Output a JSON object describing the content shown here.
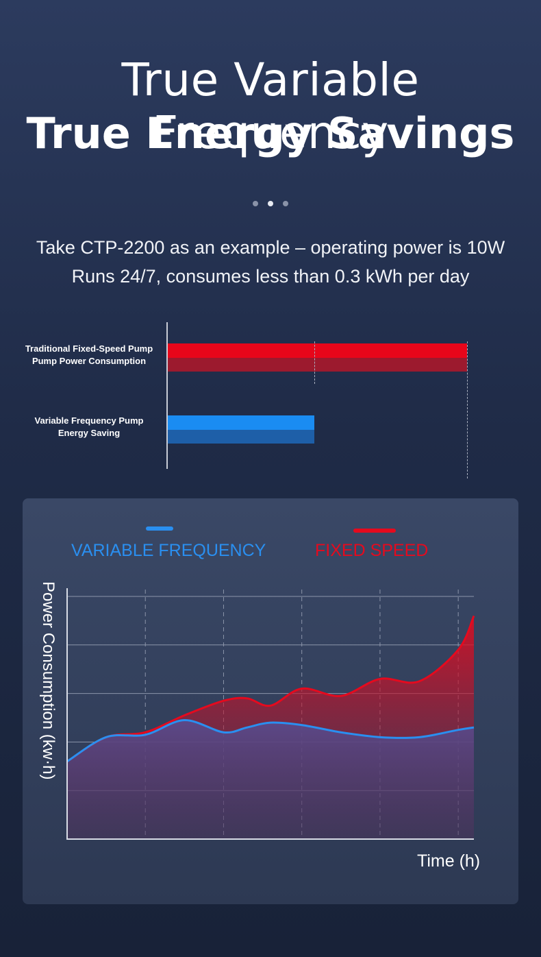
{
  "header": {
    "title_line1": "True Variable Frequency",
    "title_line2": "True Energy Savings",
    "carousel": {
      "count": 3,
      "active_index": 1
    }
  },
  "intro": {
    "line1": "Take CTP-2200 as an example – operating power is 10W",
    "line2": "Runs 24/7, consumes less than 0.3 kWh per day"
  },
  "colors": {
    "fixed_bar_top": "#e8061a",
    "fixed_bar_bottom": "#9c1a2e",
    "variable_bar_top": "#1a8cf2",
    "variable_bar_bottom": "#1e5fa8",
    "variable_line": "#2a8ff0",
    "fixed_line": "#e50a1e"
  },
  "chart_data": [
    {
      "type": "bar",
      "orientation": "horizontal",
      "categories": [
        {
          "line1": "Traditional Fixed-Speed Pump",
          "line2": "Pump Power Consumption"
        },
        {
          "line1": "Variable Frequency Pump",
          "line2": "Energy Saving"
        }
      ],
      "values": [
        100,
        49
      ],
      "xlim": [
        0,
        100
      ],
      "reference_lines": [
        49,
        100
      ]
    },
    {
      "type": "area",
      "legend": [
        "VARIABLE FREQUENCY",
        "FIXED SPEED"
      ],
      "legend_placement": "top",
      "ylabel": "Power Consumption  (kw·h)",
      "xlabel": "Time (h)",
      "x": [
        0,
        0.5,
        1,
        1.5,
        2,
        2.3,
        2.6,
        3,
        3.5,
        4,
        4.5,
        5,
        5.2
      ],
      "xlim": [
        0,
        5.2
      ],
      "ylim": [
        0,
        5
      ],
      "grid": true,
      "series": [
        {
          "name": "VARIABLE FREQUENCY",
          "values": [
            1.6,
            2.1,
            2.15,
            2.45,
            2.2,
            2.3,
            2.4,
            2.35,
            2.2,
            2.1,
            2.1,
            2.25,
            2.3
          ]
        },
        {
          "name": "FIXED SPEED",
          "values": [
            1.6,
            2.1,
            2.2,
            2.55,
            2.85,
            2.9,
            2.75,
            3.1,
            2.95,
            3.3,
            3.25,
            3.9,
            4.6
          ]
        }
      ]
    }
  ]
}
